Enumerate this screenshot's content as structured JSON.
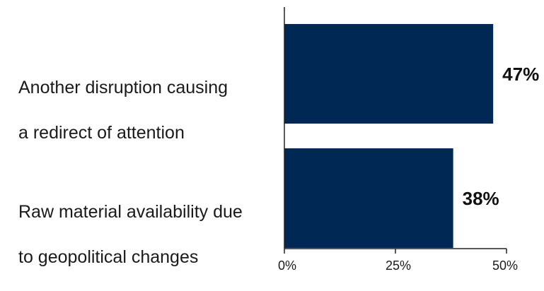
{
  "chart_data": {
    "type": "bar",
    "orientation": "horizontal",
    "categories": [
      "Another disruption causing a redirect of attention",
      "Raw material availability due to geopolitical changes"
    ],
    "category_lines": [
      [
        "Another disruption causing",
        "a redirect of attention"
      ],
      [
        "Raw material availability due",
        "to geopolitical changes"
      ]
    ],
    "values": [
      47,
      38
    ],
    "value_labels": [
      "47%",
      "38%"
    ],
    "xlim": [
      0,
      50
    ],
    "xticks": [
      0,
      25,
      50
    ],
    "xtick_labels": [
      "0%",
      "25%",
      "50%"
    ],
    "bar_color": "#002855",
    "grid": false,
    "legend": "none"
  }
}
